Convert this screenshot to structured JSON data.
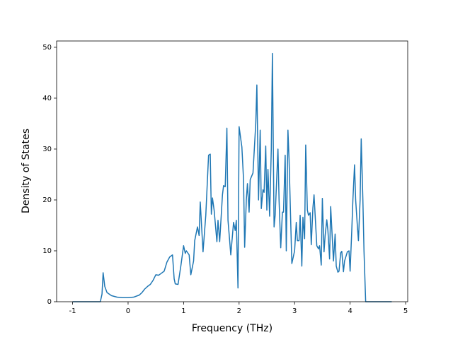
{
  "chart_data": {
    "type": "line",
    "x_label": "Frequency (THz)",
    "y_label": "Density of States",
    "x": [
      -1,
      -0.5,
      -0.47,
      -0.45,
      -0.42,
      -0.38,
      -0.3,
      -0.2,
      -0.1,
      0,
      0.1,
      0.2,
      0.25,
      0.3,
      0.35,
      0.4,
      0.45,
      0.5,
      0.55,
      0.6,
      0.65,
      0.7,
      0.75,
      0.8,
      0.83,
      0.85,
      0.9,
      0.95,
      1.0,
      1.03,
      1.05,
      1.1,
      1.13,
      1.18,
      1.2,
      1.25,
      1.28,
      1.3,
      1.35,
      1.4,
      1.45,
      1.48,
      1.5,
      1.52,
      1.55,
      1.6,
      1.62,
      1.65,
      1.7,
      1.72,
      1.75,
      1.78,
      1.8,
      1.83,
      1.85,
      1.88,
      1.9,
      1.93,
      1.95,
      1.98,
      2.0,
      2.03,
      2.05,
      2.08,
      2.1,
      2.13,
      2.15,
      2.18,
      2.2,
      2.25,
      2.3,
      2.32,
      2.35,
      2.38,
      2.4,
      2.43,
      2.45,
      2.48,
      2.5,
      2.52,
      2.55,
      2.58,
      2.6,
      2.63,
      2.65,
      2.7,
      2.72,
      2.75,
      2.78,
      2.8,
      2.83,
      2.85,
      2.88,
      2.9,
      2.95,
      3.0,
      3.03,
      3.05,
      3.08,
      3.1,
      3.13,
      3.15,
      3.18,
      3.2,
      3.23,
      3.25,
      3.28,
      3.3,
      3.33,
      3.35,
      3.4,
      3.43,
      3.45,
      3.48,
      3.5,
      3.53,
      3.55,
      3.58,
      3.6,
      3.63,
      3.65,
      3.7,
      3.73,
      3.75,
      3.78,
      3.8,
      3.83,
      3.85,
      3.88,
      3.9,
      3.95,
      3.98,
      4.0,
      4.03,
      4.05,
      4.08,
      4.1,
      4.13,
      4.15,
      4.18,
      4.2,
      4.23,
      4.25,
      4.28,
      4.3,
      4.75
    ],
    "series": [
      {
        "color": "#1f77b4",
        "values": [
          0,
          0,
          1.5,
          5.7,
          3,
          1.8,
          1.2,
          0.9,
          0.8,
          0.8,
          0.9,
          1.3,
          1.8,
          2.5,
          3,
          3.4,
          4.2,
          5.3,
          5.2,
          5.6,
          6,
          7.8,
          8.8,
          9.2,
          4.5,
          3.5,
          3.4,
          7,
          11,
          9.5,
          10,
          9.2,
          5.3,
          8,
          12,
          14.7,
          13,
          19.6,
          9.8,
          17,
          28.8,
          29,
          17.2,
          20.4,
          18,
          11.8,
          16,
          11.8,
          21,
          22.8,
          22.6,
          34.1,
          16,
          12,
          9.2,
          13,
          15.6,
          14,
          16,
          2.7,
          34.4,
          32,
          30.4,
          24,
          10.7,
          20,
          23.2,
          17.6,
          24,
          25.3,
          35,
          42.6,
          20,
          33.7,
          18.3,
          22,
          21.5,
          30.6,
          18,
          26,
          16.8,
          30,
          48.8,
          14.7,
          17,
          30,
          20,
          10.6,
          17.6,
          17.6,
          28.8,
          10,
          33.7,
          28,
          7.5,
          10,
          15.6,
          12,
          12,
          17,
          7,
          16.6,
          12.4,
          30.8,
          18,
          17,
          17.5,
          11.2,
          18.5,
          21,
          11,
          10.4,
          11,
          7.2,
          20.3,
          9.8,
          13,
          16.1,
          14,
          8.4,
          18.7,
          8,
          13.3,
          7,
          5.8,
          6,
          9.6,
          9.9,
          5.9,
          8,
          9.8,
          10,
          6,
          14,
          20,
          26.9,
          20,
          15,
          12,
          20,
          32,
          20,
          10,
          0,
          0,
          0
        ]
      }
    ],
    "xlim": [
      -1.2875,
      5.0375
    ],
    "xticks": [
      -1,
      0,
      1,
      2,
      3,
      4,
      5
    ],
    "ylim": [
      0,
      51.24
    ],
    "yticks": [
      0,
      10,
      20,
      30,
      40,
      50
    ]
  }
}
